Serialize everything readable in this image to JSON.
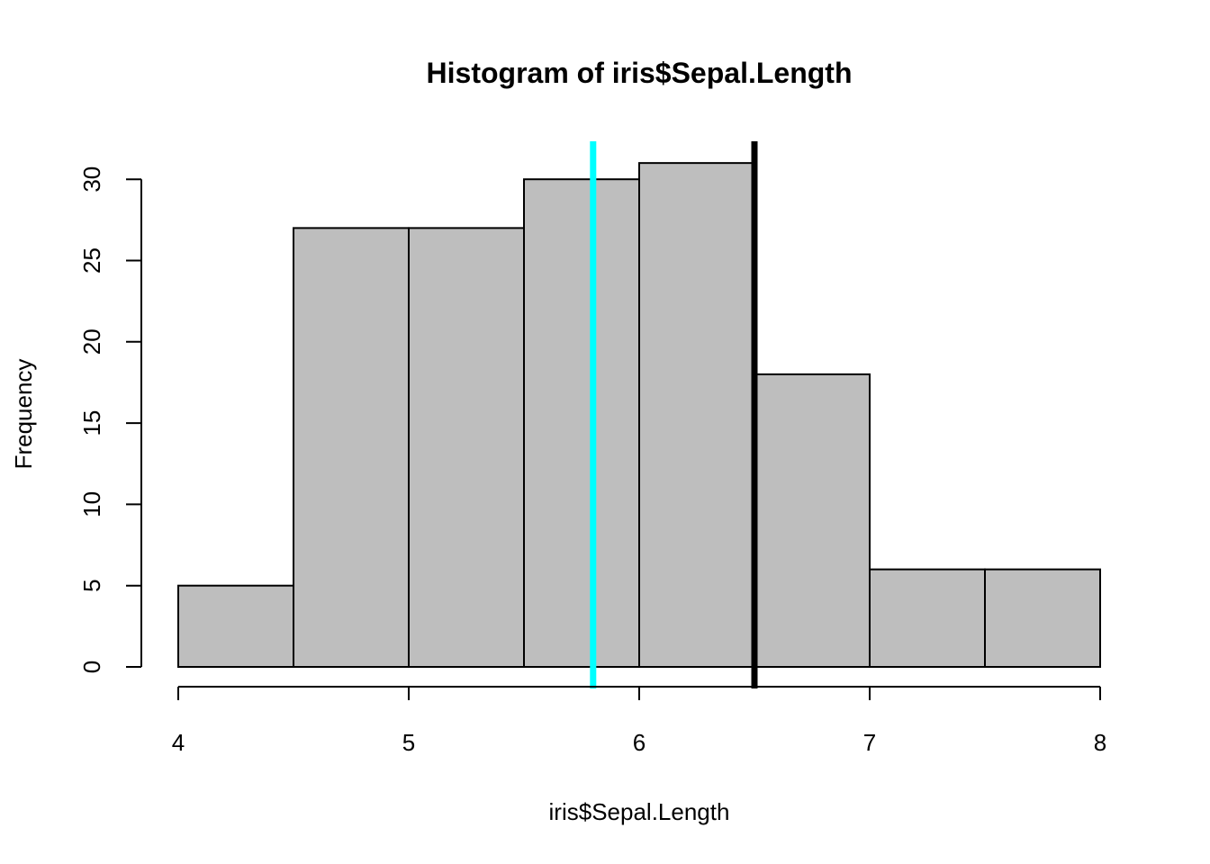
{
  "chart_data": {
    "type": "bar",
    "title": "Histogram of iris$Sepal.Length",
    "xlabel": "iris$Sepal.Length",
    "ylabel": "Frequency",
    "bins": [
      {
        "start": 4.0,
        "end": 4.5,
        "count": 5
      },
      {
        "start": 4.5,
        "end": 5.0,
        "count": 27
      },
      {
        "start": 5.0,
        "end": 5.5,
        "count": 27
      },
      {
        "start": 5.5,
        "end": 6.0,
        "count": 30
      },
      {
        "start": 6.0,
        "end": 6.5,
        "count": 31
      },
      {
        "start": 6.5,
        "end": 7.0,
        "count": 18
      },
      {
        "start": 7.0,
        "end": 7.5,
        "count": 6
      },
      {
        "start": 7.5,
        "end": 8.0,
        "count": 6
      }
    ],
    "xlim": [
      4,
      8
    ],
    "ylim": [
      0,
      31
    ],
    "x_ticks": [
      "4",
      "5",
      "6",
      "7",
      "8"
    ],
    "y_ticks": [
      "0",
      "5",
      "10",
      "15",
      "20",
      "25",
      "30"
    ],
    "bar_color": "#bebebe",
    "reference_lines": [
      {
        "x": 5.8,
        "color": "#00ffff"
      },
      {
        "x": 6.5,
        "color": "#000000"
      }
    ],
    "grid": false,
    "legend": "none"
  }
}
